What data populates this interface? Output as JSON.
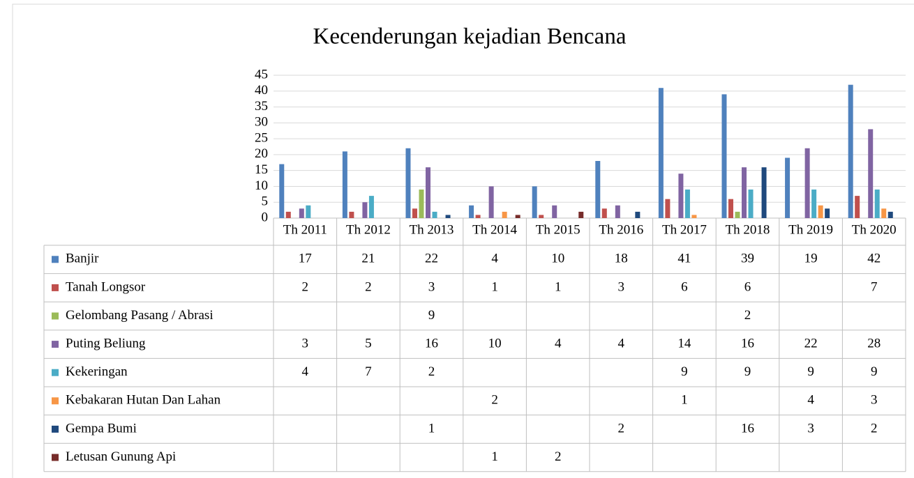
{
  "chart_data": {
    "type": "bar",
    "title": "Kecenderungan kejadian Bencana",
    "categories": [
      "Th 2011",
      "Th 2012",
      "Th 2013",
      "Th 2014",
      "Th 2015",
      "Th 2016",
      "Th 2017",
      "Th 2018",
      "Th 2019",
      "Th 2020"
    ],
    "series": [
      {
        "name": "Banjir",
        "color": "#4f81bd",
        "values": [
          17,
          21,
          22,
          4,
          10,
          18,
          41,
          39,
          19,
          42
        ]
      },
      {
        "name": "Tanah Longsor",
        "color": "#c0504d",
        "values": [
          2,
          2,
          3,
          1,
          1,
          3,
          6,
          6,
          null,
          7
        ]
      },
      {
        "name": "Gelombang Pasang / Abrasi",
        "color": "#9bbb59",
        "values": [
          null,
          null,
          9,
          null,
          null,
          null,
          null,
          2,
          null,
          null
        ]
      },
      {
        "name": "Puting Beliung",
        "color": "#8064a2",
        "values": [
          3,
          5,
          16,
          10,
          4,
          4,
          14,
          16,
          22,
          28
        ]
      },
      {
        "name": "Kekeringan",
        "color": "#4bacc6",
        "values": [
          4,
          7,
          2,
          null,
          null,
          null,
          9,
          9,
          9,
          9
        ]
      },
      {
        "name": "Kebakaran Hutan Dan Lahan",
        "color": "#f79646",
        "values": [
          null,
          null,
          null,
          2,
          null,
          null,
          1,
          null,
          4,
          3
        ]
      },
      {
        "name": "Gempa Bumi",
        "color": "#1f497d",
        "values": [
          null,
          null,
          1,
          null,
          null,
          2,
          null,
          16,
          3,
          2
        ]
      },
      {
        "name": "Letusan Gunung Api",
        "color": "#772c2a",
        "values": [
          null,
          null,
          null,
          1,
          2,
          null,
          null,
          null,
          null,
          null
        ]
      }
    ],
    "ylim": [
      0,
      45
    ],
    "yticks": [
      0,
      5,
      10,
      15,
      20,
      25,
      30,
      35,
      40,
      45
    ],
    "grid": true
  }
}
